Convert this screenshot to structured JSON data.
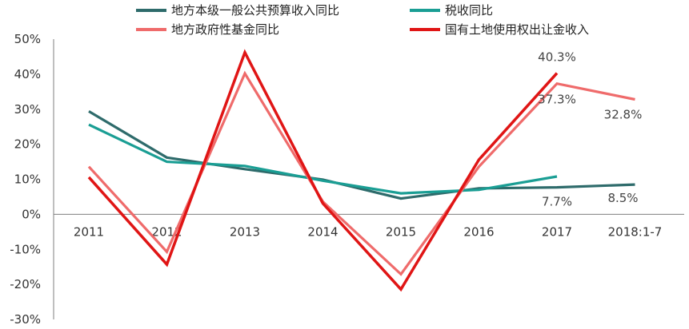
{
  "chart_data": {
    "type": "line",
    "categories": [
      "2011",
      "2012",
      "2013",
      "2014",
      "2015",
      "2016",
      "2017",
      "2018:1-7"
    ],
    "y_ticks": [
      "50%",
      "40%",
      "30%",
      "20%",
      "10%",
      "0%",
      "-10%",
      "-20%",
      "-30%"
    ],
    "ylim": [
      -30,
      50
    ],
    "y_unit": "%",
    "grid": false,
    "legend_position": "top",
    "series": [
      {
        "name": "地方本级一般公共预算收入同比",
        "color": "#2e6b6b",
        "values": [
          29.4,
          16.2,
          12.9,
          9.9,
          4.5,
          7.4,
          7.7,
          8.5
        ]
      },
      {
        "name": "税收同比",
        "color": "#1a9e94",
        "values": [
          25.6,
          15.0,
          13.8,
          9.6,
          6.0,
          7.0,
          10.8,
          null
        ]
      },
      {
        "name": "地方政府性基金同比",
        "color": "#ef6b6b",
        "values": [
          13.6,
          -10.7,
          40.2,
          3.6,
          -17.1,
          13.6,
          37.3,
          32.8
        ]
      },
      {
        "name": "国有土地使用权出让金收入",
        "color": "#e01515",
        "values": [
          10.6,
          -14.3,
          46.2,
          3.1,
          -21.4,
          15.6,
          40.3,
          null
        ]
      }
    ],
    "data_labels": [
      {
        "series": 3,
        "index": 6,
        "text": "40.3%"
      },
      {
        "series": 2,
        "index": 6,
        "text": "37.3%"
      },
      {
        "series": 2,
        "index": 7,
        "text": "32.8%"
      },
      {
        "series": 0,
        "index": 6,
        "text": "7.7%"
      },
      {
        "series": 0,
        "index": 7,
        "text": "8.5%"
      }
    ]
  }
}
